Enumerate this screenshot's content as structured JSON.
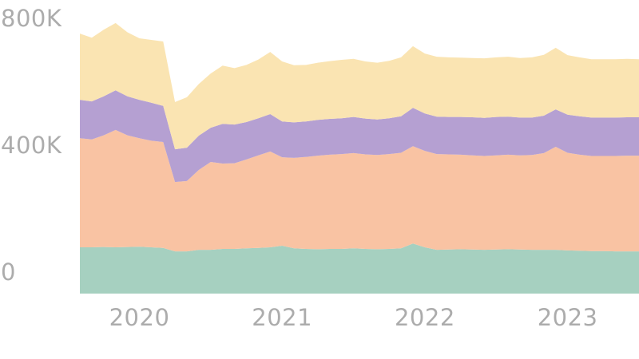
{
  "page": {
    "background": "#ffffff"
  },
  "chart_data": {
    "type": "area",
    "stacked": true,
    "title": "",
    "xlabel": "",
    "ylabel": "",
    "unit": "K",
    "grid": "off",
    "legend": "none",
    "axis_label_color": "#acacac",
    "ylim": [
      0,
      800
    ],
    "x": [
      "2019-08",
      "2019-09",
      "2019-10",
      "2019-11",
      "2019-12",
      "2020-01",
      "2020-02",
      "2020-03",
      "2020-04",
      "2020-05",
      "2020-06",
      "2020-07",
      "2020-08",
      "2020-09",
      "2020-10",
      "2020-11",
      "2020-12",
      "2021-01",
      "2021-02",
      "2021-03",
      "2021-04",
      "2021-05",
      "2021-06",
      "2021-07",
      "2021-08",
      "2021-09",
      "2021-10",
      "2021-11",
      "2021-12",
      "2022-01",
      "2022-02",
      "2022-03",
      "2022-04",
      "2022-05",
      "2022-06",
      "2022-07",
      "2022-08",
      "2022-09",
      "2022-10",
      "2022-11",
      "2022-12",
      "2023-01",
      "2023-02",
      "2023-03",
      "2023-04",
      "2023-05",
      "2023-06",
      "2023-07"
    ],
    "series": [
      {
        "name": "teal-bottom-band",
        "color": "#a6d0c0",
        "values": [
          146,
          146,
          147,
          146,
          147,
          148,
          146,
          144,
          133,
          133,
          138,
          138,
          141,
          141,
          143,
          144,
          146,
          151,
          143,
          141,
          140,
          141,
          141,
          143,
          141,
          140,
          141,
          143,
          158,
          146,
          138,
          139,
          140,
          139,
          138,
          139,
          140,
          139,
          138,
          138,
          138,
          136,
          135,
          134,
          134,
          133,
          133,
          133
        ]
      },
      {
        "name": "salmon-band",
        "color": "#f9c3a3",
        "values": [
          344,
          340,
          352,
          370,
          352,
          342,
          336,
          334,
          219,
          222,
          252,
          277,
          269,
          270,
          280,
          292,
          302,
          279,
          285,
          290,
          295,
          297,
          299,
          300,
          298,
          297,
          299,
          301,
          307,
          304,
          302,
          300,
          298,
          297,
          296,
          297,
          298,
          297,
          299,
          305,
          325,
          308,
          303,
          300,
          300,
          301,
          302,
          302
        ]
      },
      {
        "name": "purple-band",
        "color": "#b5a0d2",
        "values": [
          121,
          120,
          123,
          125,
          123,
          121,
          120,
          114,
          103,
          105,
          108,
          108,
          125,
          122,
          118,
          117,
          118,
          113,
          112,
          112,
          113,
          113,
          113,
          114,
          113,
          112,
          113,
          115,
          121,
          118,
          118,
          118,
          119,
          120,
          120,
          121,
          120,
          119,
          118,
          118,
          118,
          120,
          121,
          121,
          121,
          121,
          121,
          121
        ]
      },
      {
        "name": "cream-top-band",
        "color": "#fae4b2",
        "values": [
          209,
          201,
          210,
          212,
          202,
          194,
          198,
          203,
          149,
          159,
          163,
          171,
          184,
          178,
          180,
          185,
          196,
          189,
          180,
          178,
          180,
          182,
          184,
          183,
          180,
          179,
          181,
          186,
          194,
          189,
          189,
          188,
          187,
          187,
          188,
          188,
          189,
          188,
          190,
          192,
          194,
          188,
          186,
          184,
          184,
          184,
          184,
          183
        ]
      }
    ],
    "yticks": [
      {
        "label": "800K",
        "value": 800
      },
      {
        "label": "400K",
        "value": 400
      },
      {
        "label": "0",
        "value": 0
      }
    ],
    "xticks": [
      {
        "label": "2020",
        "x_index": 5
      },
      {
        "label": "2021",
        "x_index": 17
      },
      {
        "label": "2022",
        "x_index": 29
      },
      {
        "label": "2023",
        "x_index": 41
      }
    ]
  }
}
